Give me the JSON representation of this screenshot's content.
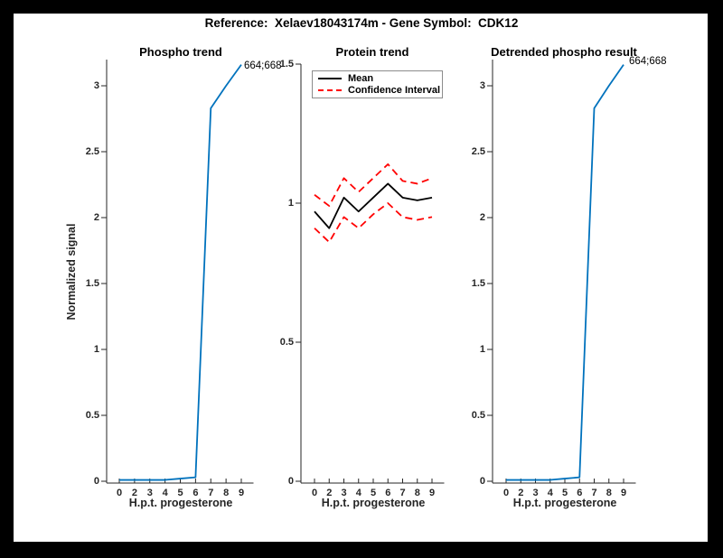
{
  "figure": {
    "title": "Reference:  Xelaev18043174m - Gene Symbol:  CDK12"
  },
  "colors": {
    "phospho_line": "#0072BD",
    "mean_line": "#000000",
    "ci_line": "#FF0000",
    "axis": "#262626",
    "figure_bg": "#FFFFFF",
    "frame_bg": "#000000"
  },
  "chart_data": [
    {
      "type": "line",
      "title": "Phospho trend",
      "xlabel": "H.p.t. progesterone",
      "ylabel": "Normalized signal",
      "grid": false,
      "x_tick_labels": [
        "0",
        "2",
        "3",
        "4",
        "5",
        "6",
        "7",
        "8",
        "9"
      ],
      "y_tick_values": [
        0,
        0.5,
        1,
        1.5,
        2,
        2.5,
        3
      ],
      "y_tick_labels": [
        "0",
        "0.5",
        "1",
        "1.5",
        "2",
        "2.5",
        "3"
      ],
      "ylim": [
        0,
        3.2
      ],
      "annotation": "664;668",
      "series": [
        {
          "name": "664;668",
          "color": "#0072BD",
          "style": "solid",
          "values": [
            0.01,
            0.01,
            0.01,
            0.01,
            0.02,
            0.03,
            2.83,
            3.0,
            3.16
          ]
        }
      ]
    },
    {
      "type": "line",
      "title": "Protein trend",
      "xlabel": "H.p.t. progesterone",
      "ylabel": "",
      "grid": false,
      "x_tick_labels": [
        "0",
        "2",
        "3",
        "4",
        "5",
        "6",
        "7",
        "8",
        "9"
      ],
      "y_tick_values": [
        0,
        0.5,
        1,
        1.5
      ],
      "y_tick_labels": [
        "0",
        "0.5",
        "1",
        "1.5"
      ],
      "ylim": [
        0,
        1.5
      ],
      "legend": [
        "Mean",
        "Confidence Interval"
      ],
      "legend_position": "top-left",
      "series": [
        {
          "name": "Mean",
          "color": "#000000",
          "style": "solid",
          "values": [
            0.97,
            0.91,
            1.02,
            0.97,
            1.02,
            1.07,
            1.02,
            1.01,
            1.02
          ]
        },
        {
          "name": "Confidence Interval upper",
          "color": "#FF0000",
          "style": "dashed",
          "values": [
            1.03,
            0.99,
            1.09,
            1.04,
            1.09,
            1.14,
            1.08,
            1.07,
            1.09
          ]
        },
        {
          "name": "Confidence Interval lower",
          "color": "#FF0000",
          "style": "dashed",
          "values": [
            0.91,
            0.86,
            0.95,
            0.91,
            0.96,
            1.0,
            0.95,
            0.94,
            0.95
          ]
        }
      ]
    },
    {
      "type": "line",
      "title": "Detrended phospho result",
      "xlabel": "H.p.t. progesterone",
      "ylabel": "",
      "grid": false,
      "x_tick_labels": [
        "0",
        "2",
        "3",
        "4",
        "5",
        "6",
        "7",
        "8",
        "9"
      ],
      "y_tick_values": [
        0,
        0.5,
        1,
        1.5,
        2,
        2.5,
        3
      ],
      "y_tick_labels": [
        "0",
        "0.5",
        "1",
        "1.5",
        "2",
        "2.5",
        "3"
      ],
      "ylim": [
        0,
        3.2
      ],
      "annotation": "664;668",
      "series": [
        {
          "name": "664;668",
          "color": "#0072BD",
          "style": "solid",
          "values": [
            0.01,
            0.01,
            0.01,
            0.01,
            0.02,
            0.03,
            2.83,
            3.0,
            3.16
          ]
        }
      ]
    }
  ]
}
